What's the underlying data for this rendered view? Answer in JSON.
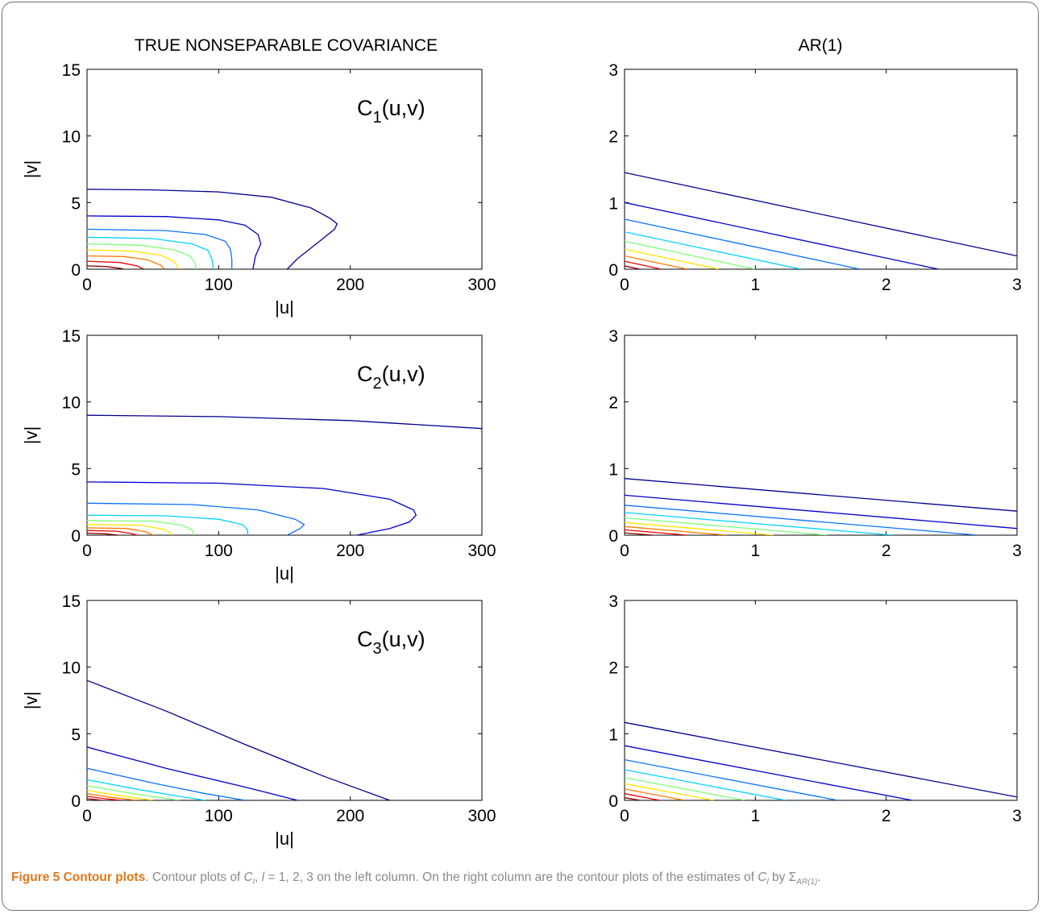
{
  "column_titles": {
    "left": "TRUE NONSEPARABLE COVARIANCE",
    "right": "AR(1)"
  },
  "panel_labels": [
    {
      "main": "C",
      "sub": "1",
      "rest": "(u,v)"
    },
    {
      "main": "C",
      "sub": "2",
      "rest": "(u,v)"
    },
    {
      "main": "C",
      "sub": "3",
      "rest": "(u,v)"
    }
  ],
  "axis_labels": {
    "left_x": "|u|",
    "left_y": "|v|"
  },
  "caption": {
    "figure_label": "Figure 5",
    "title": "Contour plots",
    "text_1": ". Contour plots of ",
    "c_sym": "C",
    "c_sub_l": "l",
    "text_2": ", ",
    "l_sym": "l",
    "text_3": " = 1, 2, 3 on the left column. On the right column are the contour plots of the estimates of ",
    "c_sym2": "C",
    "c_sub_l2": "l",
    "text_4": " by ",
    "sigma": "Σ",
    "sigma_sub": "AR(1)",
    "text_5": "."
  },
  "chart_data": [
    {
      "type": "line",
      "panel": "C1 true",
      "xlim": [
        0,
        300
      ],
      "ylim": [
        0,
        15
      ],
      "xticks": [
        0,
        100,
        200,
        300
      ],
      "yticks": [
        0,
        5,
        10,
        15
      ],
      "xlabel": "|u|",
      "ylabel": "|v|",
      "series": [
        {
          "color": "#00008f",
          "points": [
            [
              0,
              6
            ],
            [
              50,
              5.95
            ],
            [
              100,
              5.8
            ],
            [
              140,
              5.4
            ],
            [
              170,
              4.6
            ],
            [
              185,
              3.8
            ],
            [
              190,
              3.4
            ],
            [
              188,
              3.0
            ],
            [
              178,
              2.2
            ],
            [
              160,
              0.8
            ],
            [
              152,
              0
            ]
          ]
        },
        {
          "color": "#0000cf",
          "points": [
            [
              0,
              4
            ],
            [
              60,
              3.95
            ],
            [
              100,
              3.7
            ],
            [
              120,
              3.3
            ],
            [
              130,
              2.6
            ],
            [
              132,
              1.9
            ],
            [
              128,
              1.0
            ],
            [
              126,
              0
            ]
          ]
        },
        {
          "color": "#0a72ff",
          "points": [
            [
              0,
              3
            ],
            [
              60,
              2.9
            ],
            [
              90,
              2.6
            ],
            [
              105,
              2.1
            ],
            [
              109,
              1.5
            ],
            [
              110,
              0.7
            ],
            [
              110,
              0
            ]
          ]
        },
        {
          "color": "#00d2ff",
          "points": [
            [
              0,
              2.4
            ],
            [
              50,
              2.3
            ],
            [
              80,
              1.9
            ],
            [
              92,
              1.4
            ],
            [
              95,
              0.7
            ],
            [
              96,
              0
            ]
          ]
        },
        {
          "color": "#7dff7a",
          "points": [
            [
              0,
              1.9
            ],
            [
              40,
              1.8
            ],
            [
              66,
              1.45
            ],
            [
              78,
              1.0
            ],
            [
              82,
              0.5
            ],
            [
              83,
              0
            ]
          ]
        },
        {
          "color": "#ffe500",
          "points": [
            [
              0,
              1.45
            ],
            [
              35,
              1.35
            ],
            [
              56,
              1.05
            ],
            [
              66,
              0.6
            ],
            [
              70,
              0
            ]
          ]
        },
        {
          "color": "#ff7a00",
          "points": [
            [
              0,
              1.0
            ],
            [
              28,
              0.95
            ],
            [
              46,
              0.7
            ],
            [
              56,
              0.3
            ],
            [
              59,
              0
            ]
          ]
        },
        {
          "color": "#e80000",
          "points": [
            [
              0,
              0.6
            ],
            [
              25,
              0.5
            ],
            [
              38,
              0.25
            ],
            [
              43,
              0
            ]
          ]
        },
        {
          "color": "#8f0000",
          "points": [
            [
              0,
              0.25
            ],
            [
              15,
              0.2
            ],
            [
              26,
              0.05
            ],
            [
              28,
              0
            ]
          ]
        }
      ]
    },
    {
      "type": "line",
      "panel": "C1 AR(1)",
      "xlim": [
        0,
        3
      ],
      "ylim": [
        0,
        3
      ],
      "xticks": [
        0,
        1,
        2,
        3
      ],
      "yticks": [
        0,
        1,
        2,
        3
      ],
      "series": [
        {
          "color": "#00008f",
          "points": [
            [
              0,
              1.45
            ],
            [
              3,
              0.2
            ]
          ]
        },
        {
          "color": "#0000cf",
          "points": [
            [
              0,
              1.0
            ],
            [
              2.4,
              0
            ]
          ]
        },
        {
          "color": "#0a72ff",
          "points": [
            [
              0,
              0.75
            ],
            [
              1.8,
              0
            ]
          ]
        },
        {
          "color": "#00d2ff",
          "points": [
            [
              0,
              0.56
            ],
            [
              1.35,
              0
            ]
          ]
        },
        {
          "color": "#7dff7a",
          "points": [
            [
              0,
              0.42
            ],
            [
              1.0,
              0
            ]
          ]
        },
        {
          "color": "#ffe500",
          "points": [
            [
              0,
              0.3
            ],
            [
              0.72,
              0
            ]
          ]
        },
        {
          "color": "#ff7a00",
          "points": [
            [
              0,
              0.2
            ],
            [
              0.48,
              0
            ]
          ]
        },
        {
          "color": "#e80000",
          "points": [
            [
              0,
              0.12
            ],
            [
              0.28,
              0
            ]
          ]
        },
        {
          "color": "#8f0000",
          "points": [
            [
              0,
              0.05
            ],
            [
              0.12,
              0
            ]
          ]
        }
      ]
    },
    {
      "type": "line",
      "panel": "C2 true",
      "xlim": [
        0,
        300
      ],
      "ylim": [
        0,
        15
      ],
      "xticks": [
        0,
        100,
        200,
        300
      ],
      "yticks": [
        0,
        5,
        10,
        15
      ],
      "xlabel": "|u|",
      "ylabel": "|v|",
      "series": [
        {
          "color": "#00008f",
          "points": [
            [
              0,
              9
            ],
            [
              100,
              8.9
            ],
            [
              200,
              8.6
            ],
            [
              300,
              8.0
            ]
          ]
        },
        {
          "color": "#0000cf",
          "points": [
            [
              0,
              4
            ],
            [
              100,
              3.9
            ],
            [
              180,
              3.5
            ],
            [
              230,
              2.7
            ],
            [
              248,
              1.9
            ],
            [
              250,
              1.5
            ],
            [
              245,
              1.0
            ],
            [
              230,
              0.5
            ],
            [
              205,
              0
            ]
          ]
        },
        {
          "color": "#0a72ff",
          "points": [
            [
              0,
              2.4
            ],
            [
              80,
              2.3
            ],
            [
              130,
              1.9
            ],
            [
              158,
              1.2
            ],
            [
              165,
              0.8
            ],
            [
              162,
              0.5
            ],
            [
              152,
              0
            ]
          ]
        },
        {
          "color": "#00d2ff",
          "points": [
            [
              0,
              1.5
            ],
            [
              60,
              1.45
            ],
            [
              100,
              1.2
            ],
            [
              118,
              0.8
            ],
            [
              122,
              0.4
            ],
            [
              122,
              0
            ]
          ]
        },
        {
          "color": "#7dff7a",
          "points": [
            [
              0,
              1.1
            ],
            [
              50,
              1.05
            ],
            [
              72,
              0.75
            ],
            [
              80,
              0.4
            ],
            [
              81,
              0
            ]
          ]
        },
        {
          "color": "#ffe500",
          "points": [
            [
              0,
              0.8
            ],
            [
              40,
              0.75
            ],
            [
              58,
              0.45
            ],
            [
              63,
              0.2
            ],
            [
              64,
              0
            ]
          ]
        },
        {
          "color": "#ff7a00",
          "points": [
            [
              0,
              0.55
            ],
            [
              30,
              0.5
            ],
            [
              45,
              0.25
            ],
            [
              50,
              0
            ]
          ]
        },
        {
          "color": "#e80000",
          "points": [
            [
              0,
              0.35
            ],
            [
              22,
              0.3
            ],
            [
              34,
              0.12
            ],
            [
              38,
              0
            ]
          ]
        },
        {
          "color": "#8f0000",
          "points": [
            [
              0,
              0.15
            ],
            [
              14,
              0.1
            ],
            [
              24,
              0
            ]
          ]
        }
      ]
    },
    {
      "type": "line",
      "panel": "C2 AR(1)",
      "xlim": [
        0,
        3
      ],
      "ylim": [
        0,
        3
      ],
      "xticks": [
        0,
        1,
        2,
        3
      ],
      "yticks": [
        0,
        1,
        2,
        3
      ],
      "series": [
        {
          "color": "#00008f",
          "points": [
            [
              0,
              0.85
            ],
            [
              3,
              0.36
            ]
          ]
        },
        {
          "color": "#0000cf",
          "points": [
            [
              0,
              0.6
            ],
            [
              3,
              0.1
            ]
          ]
        },
        {
          "color": "#0a72ff",
          "points": [
            [
              0,
              0.45
            ],
            [
              2.7,
              0
            ]
          ]
        },
        {
          "color": "#00d2ff",
          "points": [
            [
              0,
              0.34
            ],
            [
              2.05,
              0
            ]
          ]
        },
        {
          "color": "#7dff7a",
          "points": [
            [
              0,
              0.26
            ],
            [
              1.55,
              0
            ]
          ]
        },
        {
          "color": "#ffe500",
          "points": [
            [
              0,
              0.19
            ],
            [
              1.14,
              0
            ]
          ]
        },
        {
          "color": "#ff7a00",
          "points": [
            [
              0,
              0.13
            ],
            [
              0.78,
              0
            ]
          ]
        },
        {
          "color": "#e80000",
          "points": [
            [
              0,
              0.08
            ],
            [
              0.48,
              0
            ]
          ]
        },
        {
          "color": "#8f0000",
          "points": [
            [
              0,
              0.035
            ],
            [
              0.22,
              0
            ]
          ]
        }
      ]
    },
    {
      "type": "line",
      "panel": "C3 true",
      "xlim": [
        0,
        300
      ],
      "ylim": [
        0,
        15
      ],
      "xticks": [
        0,
        100,
        200,
        300
      ],
      "yticks": [
        0,
        5,
        10,
        15
      ],
      "xlabel": "|u|",
      "ylabel": "|v|",
      "series": [
        {
          "color": "#00008f",
          "points": [
            [
              0,
              9
            ],
            [
              60,
              6.7
            ],
            [
              120,
              4.2
            ],
            [
              180,
              1.8
            ],
            [
              230,
              0
            ]
          ]
        },
        {
          "color": "#0000cf",
          "points": [
            [
              0,
              4
            ],
            [
              60,
              2.4
            ],
            [
              120,
              1.0
            ],
            [
              160,
              0
            ]
          ]
        },
        {
          "color": "#0a72ff",
          "points": [
            [
              0,
              2.4
            ],
            [
              50,
              1.3
            ],
            [
              90,
              0.5
            ],
            [
              120,
              0
            ]
          ]
        },
        {
          "color": "#00d2ff",
          "points": [
            [
              0,
              1.55
            ],
            [
              40,
              0.8
            ],
            [
              70,
              0.3
            ],
            [
              90,
              0
            ]
          ]
        },
        {
          "color": "#7dff7a",
          "points": [
            [
              0,
              1.1
            ],
            [
              35,
              0.5
            ],
            [
              70,
              0
            ]
          ]
        },
        {
          "color": "#ffe500",
          "points": [
            [
              0,
              0.75
            ],
            [
              25,
              0.35
            ],
            [
              50,
              0
            ]
          ]
        },
        {
          "color": "#ff7a00",
          "points": [
            [
              0,
              0.5
            ],
            [
              20,
              0.2
            ],
            [
              38,
              0
            ]
          ]
        },
        {
          "color": "#e80000",
          "points": [
            [
              0,
              0.3
            ],
            [
              14,
              0.12
            ],
            [
              26,
              0
            ]
          ]
        },
        {
          "color": "#8f0000",
          "points": [
            [
              0,
              0.12
            ],
            [
              12,
              0
            ]
          ]
        }
      ]
    },
    {
      "type": "line",
      "panel": "C3 AR(1)",
      "xlim": [
        0,
        3
      ],
      "ylim": [
        0,
        3
      ],
      "xticks": [
        0,
        1,
        2,
        3
      ],
      "yticks": [
        0,
        1,
        2,
        3
      ],
      "series": [
        {
          "color": "#00008f",
          "points": [
            [
              0,
              1.17
            ],
            [
              3,
              0.05
            ]
          ]
        },
        {
          "color": "#0000cf",
          "points": [
            [
              0,
              0.82
            ],
            [
              2.2,
              0
            ]
          ]
        },
        {
          "color": "#0a72ff",
          "points": [
            [
              0,
              0.61
            ],
            [
              1.63,
              0
            ]
          ]
        },
        {
          "color": "#00d2ff",
          "points": [
            [
              0,
              0.46
            ],
            [
              1.23,
              0
            ]
          ]
        },
        {
          "color": "#7dff7a",
          "points": [
            [
              0,
              0.34
            ],
            [
              0.92,
              0
            ]
          ]
        },
        {
          "color": "#ffe500",
          "points": [
            [
              0,
              0.25
            ],
            [
              0.68,
              0
            ]
          ]
        },
        {
          "color": "#ff7a00",
          "points": [
            [
              0,
              0.17
            ],
            [
              0.46,
              0
            ]
          ]
        },
        {
          "color": "#e80000",
          "points": [
            [
              0,
              0.1
            ],
            [
              0.27,
              0
            ]
          ]
        },
        {
          "color": "#8f0000",
          "points": [
            [
              0,
              0.04
            ],
            [
              0.12,
              0
            ]
          ]
        }
      ]
    }
  ]
}
